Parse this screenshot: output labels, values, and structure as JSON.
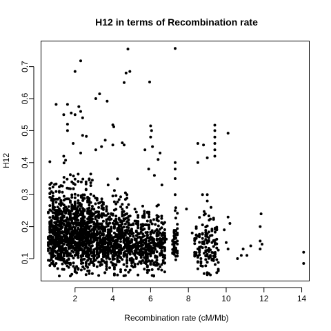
{
  "chart_data": {
    "type": "scatter",
    "title": "H12 in terms of Recombination rate",
    "xlabel": "Recombination rate (cM/Mb)",
    "ylabel": "H12",
    "xlim": [
      0.2,
      14.4
    ],
    "ylim": [
      0.03,
      0.78
    ],
    "xticks": [
      2,
      4,
      6,
      8,
      10,
      12,
      14
    ],
    "yticks": [
      0.1,
      0.2,
      0.3,
      0.4,
      0.5,
      0.6,
      0.7
    ],
    "grid": false,
    "legend": "none",
    "point_color": "#000000",
    "clusters": [
      {
        "x_range": [
          0.6,
          2.9
        ],
        "y_mean": 0.17,
        "y_sd": 0.07,
        "count": 1100
      },
      {
        "x_range": [
          2.9,
          4.9
        ],
        "y_mean": 0.15,
        "y_sd": 0.06,
        "count": 650
      },
      {
        "x_range": [
          4.9,
          6.8
        ],
        "y_mean": 0.14,
        "y_sd": 0.05,
        "count": 420
      },
      {
        "x_range": [
          7.2,
          7.4
        ],
        "y_mean": 0.14,
        "y_sd": 0.04,
        "count": 60
      },
      {
        "x_range": [
          8.3,
          9.6
        ],
        "y_mean": 0.13,
        "y_sd": 0.05,
        "count": 140
      }
    ],
    "points": [
      [
        4.8,
        0.755
      ],
      [
        7.3,
        0.757
      ],
      [
        2.3,
        0.718
      ],
      [
        2.0,
        0.685
      ],
      [
        4.7,
        0.68
      ],
      [
        4.9,
        0.685
      ],
      [
        4.6,
        0.65
      ],
      [
        5.95,
        0.652
      ],
      [
        3.3,
        0.615
      ],
      [
        3.1,
        0.6
      ],
      [
        1.0,
        0.582
      ],
      [
        1.6,
        0.582
      ],
      [
        2.2,
        0.575
      ],
      [
        2.3,
        0.56
      ],
      [
        3.7,
        0.592
      ],
      [
        1.4,
        0.55
      ],
      [
        1.8,
        0.555
      ],
      [
        2.0,
        0.55
      ],
      [
        2.4,
        0.54
      ],
      [
        1.6,
        0.52
      ],
      [
        6.0,
        0.515
      ],
      [
        6.05,
        0.5
      ],
      [
        9.4,
        0.517
      ],
      [
        9.4,
        0.5
      ],
      [
        10.1,
        0.492
      ],
      [
        4.0,
        0.518
      ],
      [
        4.05,
        0.512
      ],
      [
        1.6,
        0.5
      ],
      [
        2.4,
        0.485
      ],
      [
        2.6,
        0.482
      ],
      [
        3.6,
        0.47
      ],
      [
        6.0,
        0.48
      ],
      [
        4.5,
        0.462
      ],
      [
        4.6,
        0.455
      ],
      [
        1.9,
        0.46
      ],
      [
        8.5,
        0.46
      ],
      [
        8.8,
        0.455
      ],
      [
        9.4,
        0.48
      ],
      [
        9.4,
        0.46
      ],
      [
        9.4,
        0.44
      ],
      [
        3.4,
        0.45
      ],
      [
        3.1,
        0.44
      ],
      [
        4.0,
        0.455
      ],
      [
        6.1,
        0.45
      ],
      [
        5.7,
        0.44
      ],
      [
        9.0,
        0.415
      ],
      [
        8.5,
        0.4
      ],
      [
        9.4,
        0.42
      ],
      [
        1.4,
        0.42
      ],
      [
        2.3,
        0.43
      ],
      [
        6.5,
        0.43
      ],
      [
        7.3,
        0.4
      ],
      [
        6.4,
        0.41
      ],
      [
        7.3,
        0.38
      ],
      [
        7.3,
        0.35
      ],
      [
        7.3,
        0.3
      ],
      [
        7.3,
        0.25
      ],
      [
        7.9,
        0.255
      ],
      [
        8.2,
        0.18
      ],
      [
        8.5,
        0.17
      ],
      [
        10.1,
        0.23
      ],
      [
        10.2,
        0.21
      ],
      [
        10.0,
        0.15
      ],
      [
        10.1,
        0.13
      ],
      [
        9.9,
        0.19
      ],
      [
        10.9,
        0.13
      ],
      [
        10.8,
        0.11
      ],
      [
        10.6,
        0.1
      ],
      [
        11.3,
        0.14
      ],
      [
        11.1,
        0.11
      ],
      [
        11.85,
        0.24
      ],
      [
        11.8,
        0.2
      ],
      [
        11.8,
        0.155
      ],
      [
        11.9,
        0.145
      ],
      [
        11.8,
        0.13
      ],
      [
        14.1,
        0.12
      ],
      [
        14.1,
        0.085
      ],
      [
        5.9,
        0.38
      ],
      [
        6.2,
        0.36
      ],
      [
        6.6,
        0.33
      ],
      [
        9.0,
        0.3
      ],
      [
        9.0,
        0.28
      ],
      [
        9.2,
        0.26
      ],
      [
        8.9,
        0.24
      ],
      [
        9.1,
        0.22
      ]
    ]
  }
}
